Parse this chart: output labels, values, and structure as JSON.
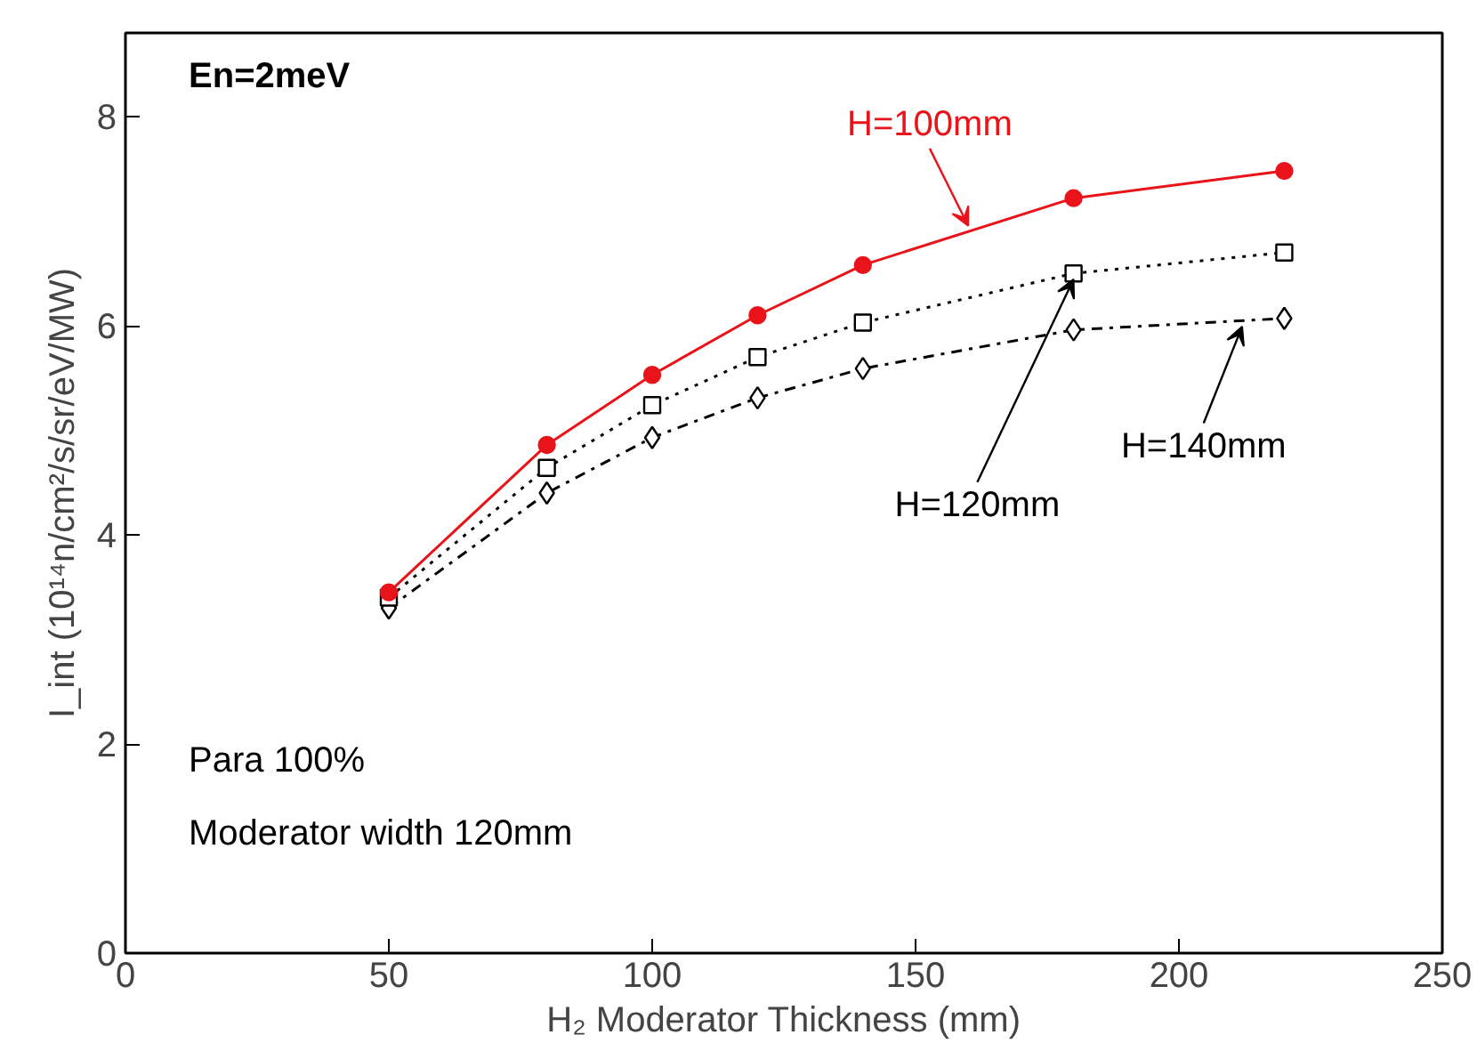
{
  "chart_data": {
    "type": "line",
    "xlabel": "H₂ Moderator Thickness (mm)",
    "ylabel": "I_int (10¹⁴n/cm²/s/sr/eV/MW)",
    "x": [
      50,
      80,
      100,
      120,
      140,
      180,
      220
    ],
    "series": [
      {
        "name": "H=100mm",
        "color": "#e8141a",
        "marker": "circle",
        "line_style": "solid",
        "values": [
          3.45,
          4.86,
          5.53,
          6.1,
          6.58,
          7.22,
          7.48
        ]
      },
      {
        "name": "H=120mm",
        "color": "#000000",
        "marker": "square",
        "line_style": "dotted",
        "values": [
          3.4,
          4.64,
          5.24,
          5.7,
          6.03,
          6.5,
          6.7
        ]
      },
      {
        "name": "H=140mm",
        "color": "#000000",
        "marker": "diamond",
        "line_style": "dashed",
        "values": [
          3.3,
          4.4,
          4.93,
          5.31,
          5.59,
          5.96,
          6.07
        ]
      }
    ],
    "annotations": [
      "En=2meV",
      "Para 100%",
      "Moderator width 120mm"
    ],
    "xlim": [
      0,
      250
    ],
    "ylim": [
      0,
      8.8
    ],
    "xticks": [
      0,
      50,
      100,
      150,
      200,
      250
    ],
    "yticks": [
      0,
      2,
      4,
      6,
      8
    ],
    "grid": false
  }
}
